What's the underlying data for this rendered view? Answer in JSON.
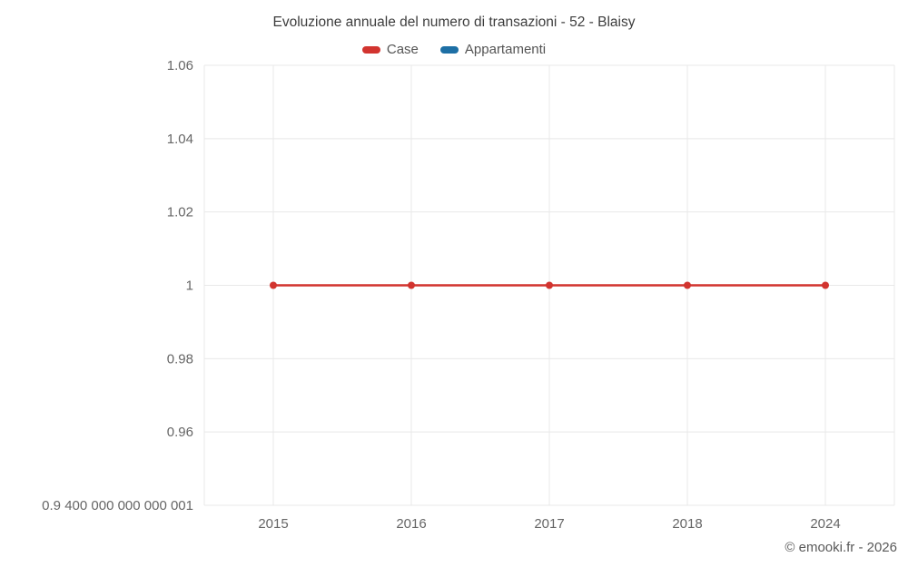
{
  "chart_data": {
    "type": "line",
    "title": "Evoluzione annuale del numero di transazioni - 52 - Blaisy",
    "legend_position": "top",
    "legend": [
      {
        "label": "Case",
        "color": "#d2342f"
      },
      {
        "label": "Appartamenti",
        "color": "#1d6fa5"
      }
    ],
    "x_labels": [
      "2015",
      "2016",
      "2017",
      "2018",
      "2024"
    ],
    "series": [
      {
        "name": "Case",
        "color": "#d2342f",
        "values": [
          1,
          1,
          1,
          1,
          1
        ]
      },
      {
        "name": "Appartamenti",
        "color": "#1d6fa5",
        "values": []
      }
    ],
    "ylim": [
      0.94,
      1.06
    ],
    "y_tick_values": [
      1.06,
      1.04,
      1.02,
      1,
      0.98,
      0.96,
      0.94
    ],
    "y_tick_labels": [
      "1.06",
      "1.04",
      "1.02",
      "1",
      "0.98",
      "0.96",
      "0.9 400 000 000 000 001"
    ],
    "grid": true,
    "grid_color": "#e8e8e8",
    "axis_text_color": "#666666"
  },
  "footer": {
    "credit": "© emooki.fr - 2026"
  }
}
